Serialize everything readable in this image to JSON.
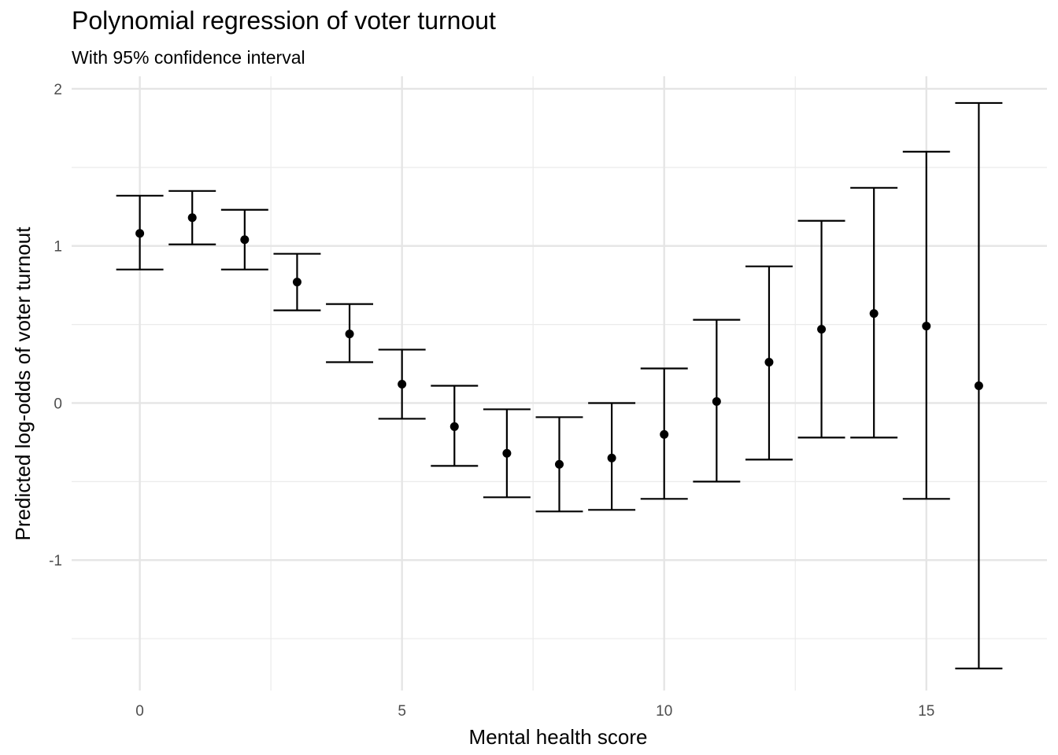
{
  "chart_data": {
    "type": "errorbar",
    "title": "Polynomial regression of voter turnout",
    "subtitle": "With 95% confidence interval",
    "xlabel": "Mental health score",
    "ylabel": "Predicted log-odds of voter turnout",
    "xlim": [
      -1.3,
      17.3
    ],
    "ylim": [
      -1.83,
      2.08
    ],
    "x_ticks": [
      0,
      5,
      10,
      15
    ],
    "x_tick_labels": [
      "0",
      "5",
      "10",
      "15"
    ],
    "y_ticks": [
      -1,
      0,
      1,
      2
    ],
    "y_tick_labels": [
      "-1",
      "0",
      "1",
      "2"
    ],
    "grid": true,
    "legend": "none",
    "x": [
      0,
      1,
      2,
      3,
      4,
      5,
      6,
      7,
      8,
      9,
      10,
      11,
      12,
      13,
      14,
      15,
      16
    ],
    "y": [
      1.08,
      1.18,
      1.04,
      0.77,
      0.44,
      0.12,
      -0.15,
      -0.32,
      -0.39,
      -0.35,
      -0.2,
      0.01,
      0.26,
      0.47,
      0.57,
      0.49,
      0.11
    ],
    "lower": [
      0.85,
      1.01,
      0.85,
      0.59,
      0.26,
      -0.1,
      -0.4,
      -0.6,
      -0.69,
      -0.68,
      -0.61,
      -0.5,
      -0.36,
      -0.22,
      -0.22,
      -0.61,
      -1.69
    ],
    "upper": [
      1.32,
      1.35,
      1.23,
      0.95,
      0.63,
      0.34,
      0.11,
      -0.04,
      -0.09,
      0.0,
      0.22,
      0.53,
      0.87,
      1.16,
      1.37,
      1.6,
      1.91
    ]
  }
}
